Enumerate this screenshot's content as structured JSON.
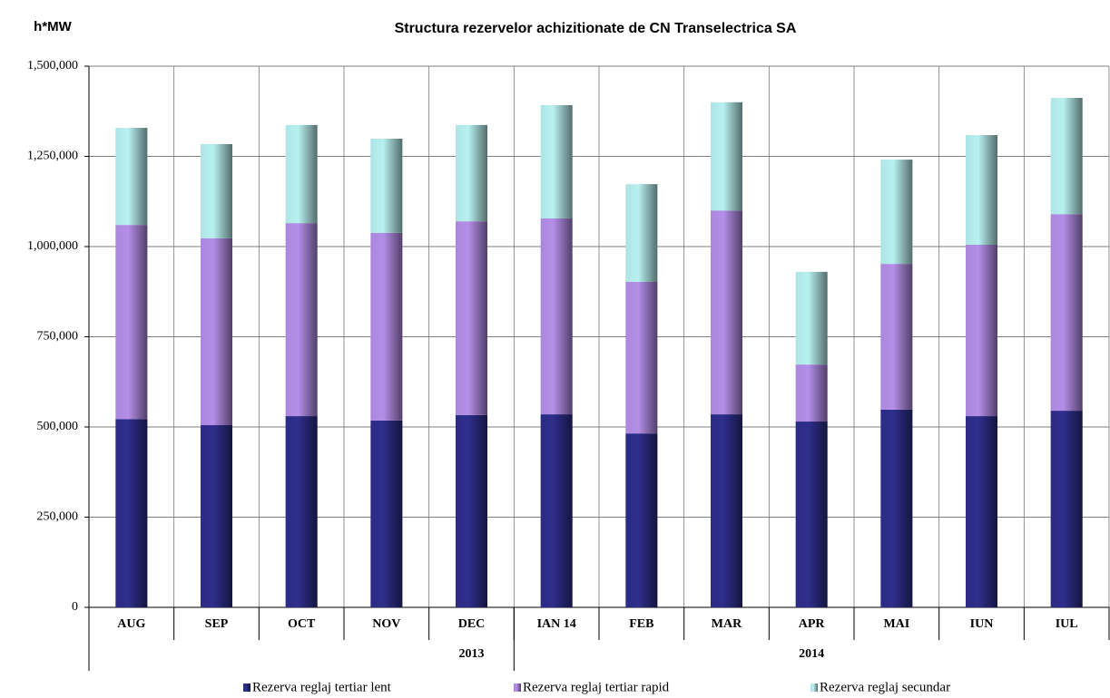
{
  "chart_data": {
    "type": "stacked_bar",
    "title": "Structura rezervelor achizitionate de CN Transelectrica SA",
    "y_label": "h*MW",
    "category_groups": [
      {
        "label": "2013",
        "categories": [
          "AUG",
          "SEP",
          "OCT",
          "NOV",
          "DEC"
        ]
      },
      {
        "label": "2014",
        "categories": [
          "IAN 14",
          "FEB",
          "MAR",
          "APR",
          "MAI",
          "IUN",
          "IUL"
        ]
      }
    ],
    "series": [
      {
        "name": "Rezerva reglaj tertiar lent",
        "color": "#2e2e8c",
        "values": [
          522000,
          505000,
          530000,
          518000,
          533000,
          535000,
          482000,
          535000,
          515000,
          548000,
          530000,
          545000
        ]
      },
      {
        "name": "Rezerva reglaj tertiar rapid",
        "color": "#b48ee8",
        "values": [
          538000,
          518000,
          535000,
          520000,
          537000,
          543000,
          420000,
          565000,
          158000,
          404000,
          475000,
          545000
        ]
      },
      {
        "name": "Rezerva reglaj secundar",
        "color": "#b8f0f0",
        "values": [
          269000,
          261000,
          272000,
          261000,
          267000,
          314000,
          271000,
          300000,
          257000,
          289000,
          304000,
          322000
        ]
      }
    ],
    "ylim": [
      0,
      1500000
    ],
    "yticks": [
      0,
      {
        "value": 250000,
        "label": "250,000"
      },
      {
        "value": 500000,
        "label": "500,000"
      },
      {
        "value": 750000,
        "label": "750,000"
      },
      {
        "value": 1000000,
        "label": "1,000,000"
      },
      {
        "value": 1250000,
        "label": "1,250,000"
      },
      {
        "value": 1500000,
        "label": "1,500,000"
      }
    ],
    "grid": true,
    "legend": "bottom"
  }
}
